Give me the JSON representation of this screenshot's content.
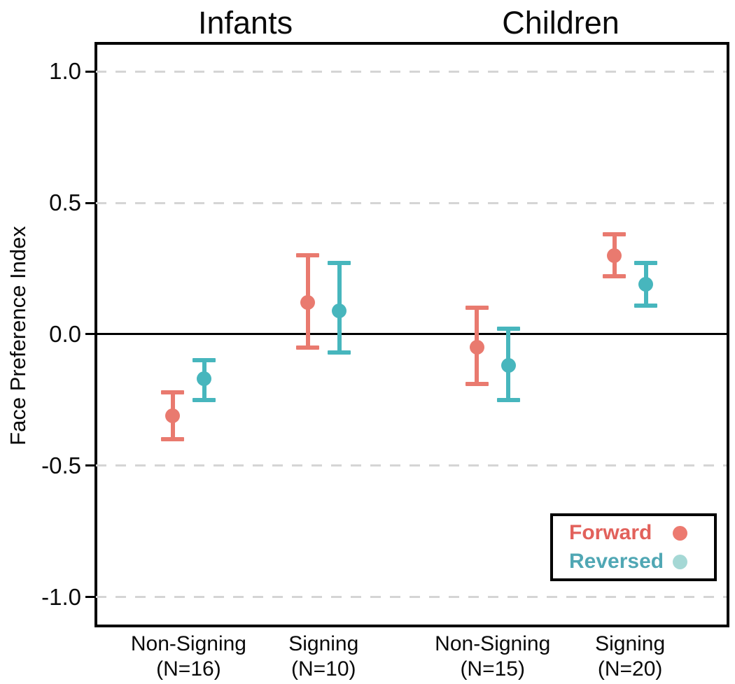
{
  "chart_data": {
    "type": "pointrange",
    "description": "Dot-and-error-bar plot of Face Preference Index by age group, signing exposure, and video direction",
    "ylabel": "Face Preference Index",
    "ylim": [
      -1.105,
      1.107
    ],
    "yticks": [
      {
        "value": 1.0,
        "label": "1.0"
      },
      {
        "value": 0.5,
        "label": "0.5"
      },
      {
        "value": 0.0,
        "label": "0.0"
      },
      {
        "value": -0.5,
        "label": "-0.5"
      },
      {
        "value": -1.0,
        "label": "-1.0"
      }
    ],
    "grid": {
      "dashed_horizontal_at": [
        1.0,
        0.5,
        -0.5,
        -1.0
      ],
      "color": "#d5d5d5"
    },
    "zero_line_at": 0.0,
    "series_colors": {
      "Forward": "#E97A6F",
      "Reversed": "#47B6BD"
    },
    "legend": {
      "position": "bottom-right",
      "entries": [
        {
          "label": "Forward",
          "text_color": "#E2615B",
          "dot_color": "#EC7A70"
        },
        {
          "label": "Reversed",
          "text_color": "#50A7B4",
          "dot_color": "#A5D8D5"
        }
      ]
    },
    "facets": [
      {
        "label": "Infants",
        "title_x_frac": 0.237,
        "groups": [
          {
            "category": "Non-Signing",
            "n_label": "(N=16)",
            "x_frac": 0.147,
            "points": [
              {
                "series": "Forward",
                "mean": -0.31,
                "ci_low": -0.4,
                "ci_high": -0.22
              },
              {
                "series": "Reversed",
                "mean": -0.17,
                "ci_low": -0.25,
                "ci_high": -0.1
              }
            ]
          },
          {
            "category": "Signing",
            "n_label": "(N=10)",
            "x_frac": 0.361,
            "points": [
              {
                "series": "Forward",
                "mean": 0.12,
                "ci_low": -0.05,
                "ci_high": 0.3
              },
              {
                "series": "Reversed",
                "mean": 0.09,
                "ci_low": -0.07,
                "ci_high": 0.27
              }
            ]
          }
        ]
      },
      {
        "label": "Children",
        "title_x_frac": 0.737,
        "groups": [
          {
            "category": "Non-Signing",
            "n_label": "(N=15)",
            "x_frac": 0.629,
            "points": [
              {
                "series": "Forward",
                "mean": -0.05,
                "ci_low": -0.19,
                "ci_high": 0.1
              },
              {
                "series": "Reversed",
                "mean": -0.12,
                "ci_low": -0.25,
                "ci_high": 0.02
              }
            ]
          },
          {
            "category": "Signing",
            "n_label": "(N=20)",
            "x_frac": 0.847,
            "points": [
              {
                "series": "Forward",
                "mean": 0.3,
                "ci_low": 0.22,
                "ci_high": 0.38
              },
              {
                "series": "Reversed",
                "mean": 0.19,
                "ci_low": 0.11,
                "ci_high": 0.27
              }
            ]
          }
        ]
      }
    ]
  }
}
